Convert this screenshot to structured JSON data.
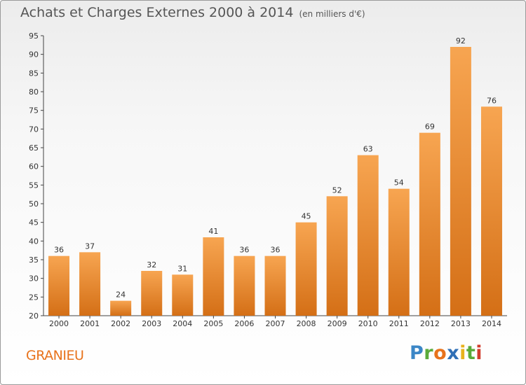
{
  "title": "Achats et Charges Externes 2000 à 2014",
  "unit": "(en milliers d'€)",
  "town": "GRANIEU",
  "logo": [
    "P",
    "r",
    "o",
    "x",
    "i",
    "t",
    "i"
  ],
  "chart_data": {
    "type": "bar",
    "categories": [
      "2000",
      "2001",
      "2002",
      "2003",
      "2004",
      "2005",
      "2006",
      "2007",
      "2008",
      "2009",
      "2010",
      "2011",
      "2012",
      "2013",
      "2014"
    ],
    "values": [
      36,
      37,
      24,
      32,
      31,
      41,
      36,
      36,
      45,
      52,
      63,
      54,
      69,
      92,
      76
    ],
    "ylim": [
      20,
      95
    ],
    "yticks": [
      20,
      25,
      30,
      35,
      40,
      45,
      50,
      55,
      60,
      65,
      70,
      75,
      80,
      85,
      90,
      95
    ],
    "grid": false,
    "bar_color": "#f0922e",
    "bar_color_dark": "#d9701a",
    "data_labels": true
  }
}
